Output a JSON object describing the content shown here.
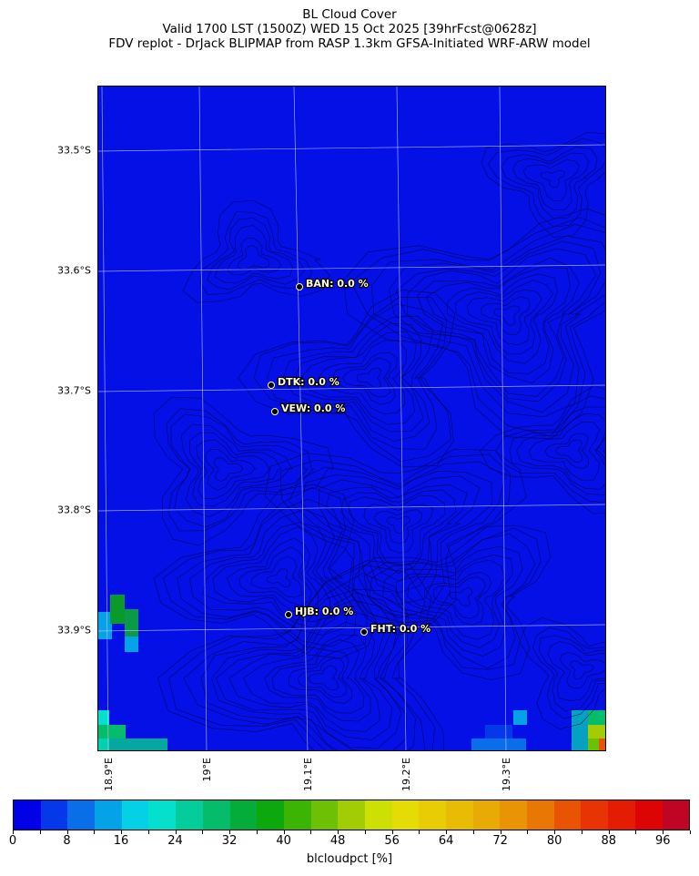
{
  "title": {
    "line1": "BL Cloud Cover",
    "line2": "Valid 1700 LST (1500Z) WED 15 Oct 2025 [39hrFcst@0628z]",
    "line3": "FDV replot - DrJack BLIPMAP from RASP 1.3km GFSA-Initiated WRF-ARW model"
  },
  "map": {
    "background_color": "#0410e6",
    "lat_labels": [
      "33.5°S",
      "33.6°S",
      "33.7°S",
      "33.8°S",
      "33.9°S"
    ],
    "lon_labels": [
      "18.9°E",
      "19°E",
      "19.1°E",
      "19.2°E",
      "19.3°E"
    ],
    "stations": [
      {
        "label": "BAN: 0.0 %"
      },
      {
        "label": "DTK: 0.0 %"
      },
      {
        "label": "VEW: 0.0 %"
      },
      {
        "label": "HJB: 0.0 %"
      },
      {
        "label": "FHT: 0.0 %"
      }
    ]
  },
  "colorbar": {
    "label": "blcloudpct [%]",
    "range": [
      0,
      100
    ],
    "step": 4,
    "ticks": [
      "0",
      "8",
      "16",
      "24",
      "32",
      "40",
      "48",
      "56",
      "64",
      "72",
      "80",
      "88",
      "96"
    ],
    "colors": [
      "#0000e6",
      "#0438e8",
      "#0a6ee8",
      "#04a2e6",
      "#04d0e6",
      "#04e0cc",
      "#04cc9a",
      "#04bc6a",
      "#04ac3a",
      "#0ca80e",
      "#3cb404",
      "#6ec004",
      "#a2cc04",
      "#cce004",
      "#e4dc04",
      "#e8cc04",
      "#e8bc04",
      "#e8aa04",
      "#e89404",
      "#e87804",
      "#e85404",
      "#e83404",
      "#e41c04",
      "#dc0404",
      "#c00424"
    ]
  }
}
